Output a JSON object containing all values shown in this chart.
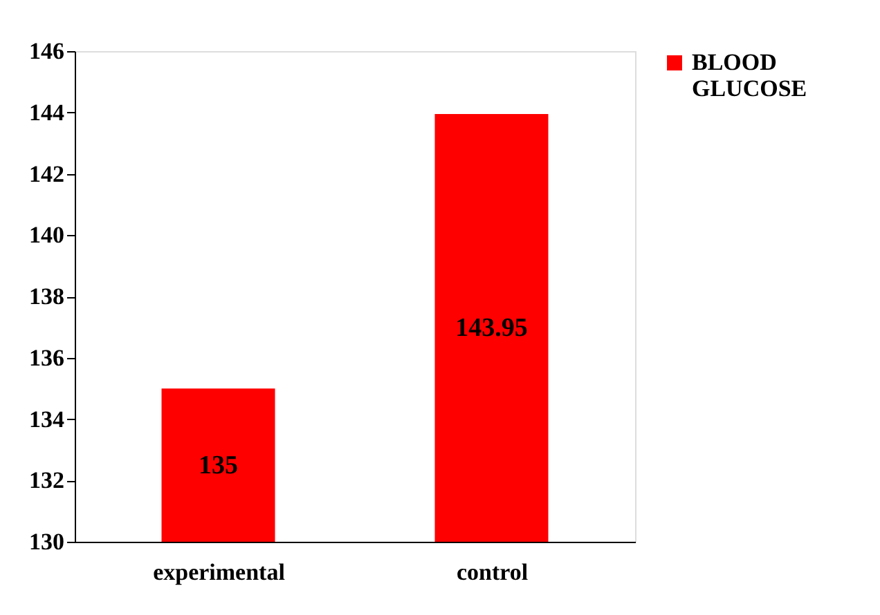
{
  "chart_data": {
    "type": "bar",
    "categories": [
      "experimental",
      "control"
    ],
    "series": [
      {
        "name": "BLOOD GLUCOSE",
        "color": "#ff0000",
        "values": [
          135,
          143.95
        ]
      }
    ],
    "ylim": [
      130,
      146
    ],
    "yticks": [
      130,
      132,
      134,
      136,
      138,
      140,
      142,
      144,
      146
    ],
    "data_labels": true,
    "grid": false,
    "legend": "right"
  }
}
